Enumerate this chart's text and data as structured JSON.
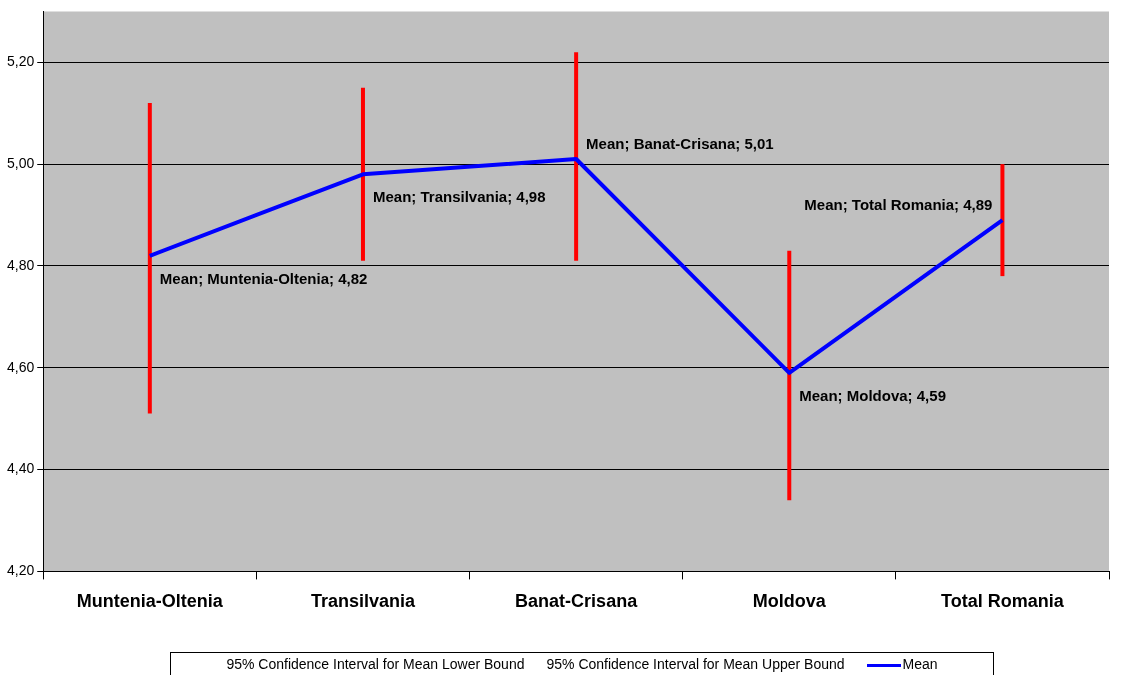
{
  "chart_data": {
    "type": "line",
    "categories": [
      "Muntenia-Oltenia",
      "Transilvania",
      "Banat-Crisana",
      "Moldova",
      "Total Romania"
    ],
    "series": [
      {
        "name": "Mean",
        "color": "#0000ff",
        "values": [
          4.82,
          4.98,
          5.01,
          4.59,
          4.89
        ],
        "errors": [
          [
            4.51,
            5.12
          ],
          [
            4.81,
            5.15
          ],
          [
            4.81,
            5.22
          ],
          [
            4.34,
            4.83
          ],
          [
            4.78,
            5.0
          ]
        ],
        "value_labels": [
          "Mean; Muntenia-Oltenia; 4,82",
          "Mean; Transilvania; 4,98",
          "Mean; Banat-Crisana; 5,01",
          "Mean; Moldova; 4,59",
          "Mean; Total Romania; 4,89"
        ]
      }
    ],
    "ylim": [
      4.2,
      5.3
    ],
    "yticks": [
      {
        "value": 4.2,
        "label": "4,20"
      },
      {
        "value": 4.4,
        "label": "4,40"
      },
      {
        "value": 4.6,
        "label": "4,60"
      },
      {
        "value": 4.8,
        "label": "4,80"
      },
      {
        "value": 5.0,
        "label": "5,00"
      },
      {
        "value": 5.2,
        "label": "5,20"
      }
    ],
    "grid": "y",
    "legend": "bottom",
    "marker": "none",
    "line_style": "solid",
    "annotations": [
      "95% Confidence Interval for Mean Lower Bound",
      "95% Confidence Interval for Mean Upper Bound"
    ]
  }
}
